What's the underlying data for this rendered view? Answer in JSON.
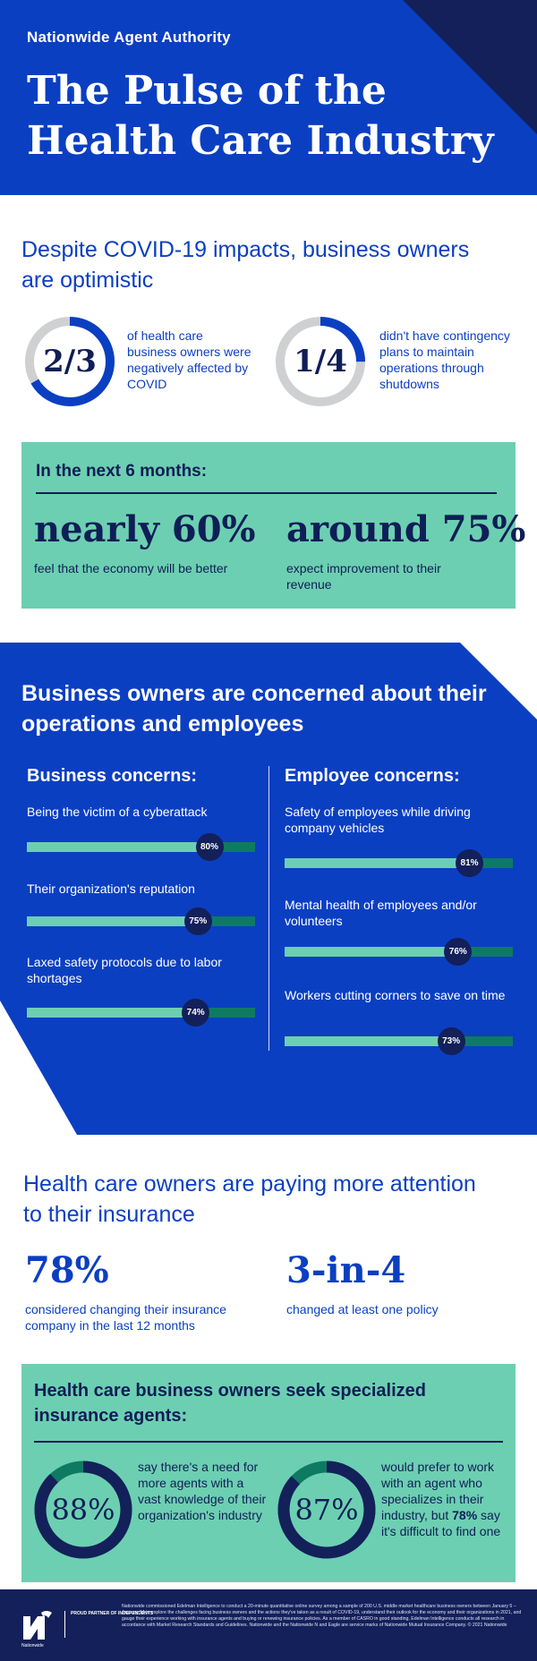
{
  "header": {
    "brand": "Nationwide Agent Authority",
    "title": "The Pulse of the Health Care Industry"
  },
  "optimism": {
    "heading": "Despite COVID-19 impacts, business owners are optimistic",
    "stats": [
      {
        "value": "2/3",
        "fraction": 0.667,
        "text": "of health care business owners were negatively affected by COVID"
      },
      {
        "value": "1/4",
        "fraction": 0.25,
        "text": "didn't have contingency plans to maintain operations through shutdowns"
      }
    ],
    "next_months": {
      "title": "In the next 6 months:",
      "items": [
        {
          "value": "nearly 60%",
          "text": "feel that the economy will be better"
        },
        {
          "value": "around 75%",
          "text": "expect improvement to their revenue"
        }
      ]
    }
  },
  "concerns": {
    "heading": "Business owners are concerned about their operations and employees",
    "business": {
      "title": "Business concerns:",
      "items": [
        {
          "label": "Being the victim of a cyberattack",
          "percent": 80,
          "badge": "80%"
        },
        {
          "label": "Their organization's reputation",
          "percent": 75,
          "badge": "75%"
        },
        {
          "label": "Laxed safety protocols due to labor shortages",
          "percent": 74,
          "badge": "74%"
        }
      ]
    },
    "employee": {
      "title": "Employee concerns:",
      "items": [
        {
          "label": "Safety of employees while driving company vehicles",
          "percent": 81,
          "badge": "81%"
        },
        {
          "label": "Mental health of employees and/or volunteers",
          "percent": 76,
          "badge": "76%"
        },
        {
          "label": "Workers cutting corners to save on time",
          "percent": 73,
          "badge": "73%"
        }
      ]
    }
  },
  "insurance": {
    "heading": "Health care owners are paying more attention to their insurance",
    "stats": [
      {
        "value": "78%",
        "text": "considered changing their insurance company in the last 12 months"
      },
      {
        "value": "3-in-4",
        "text": "changed at least one policy"
      }
    ]
  },
  "agents": {
    "title": "Health care business owners seek specialized insurance agents:",
    "items": [
      {
        "value": "88%",
        "fraction": 0.88,
        "text": "say there's a need for more agents with a vast knowledge of their organization's industry"
      },
      {
        "value": "87%",
        "fraction": 0.87,
        "text_before": "would prefer to work with an agent who specializes in their industry, but ",
        "text_bold": "78%",
        "text_after": " say it's difficult to find one"
      }
    ]
  },
  "footer": {
    "logo_text": "Nationwide",
    "partner": "PROUD PARTNER OF INDEPENDENTS",
    "disclaimer": "Nationwide commissioned Edelman Intelligence to conduct a 20-minute quantitative online survey among a sample of 200 U.S. middle market healthcare business owners between January 5 – January 14 to explore the challenges facing business owners and the actions they've taken as a result of COVID-19, understand their outlook for the economy and their organizations in 2021, and gauge their experience working with insurance agents and buying or renewing insurance policies. As a member of CASRO in good standing, Edelman Intelligence conducts all research in accordance with Market Research Standards and Guidelines. Nationwide and the Nationwide N and Eagle are service marks of Nationwide Mutual Insurance Company. © 2021 Nationwide"
  },
  "colors": {
    "royal_blue": "#0b3fc2",
    "navy": "#13205a",
    "mint": "#6dcfb1",
    "dark_green": "#0f7a62",
    "ring_gray": "#cfd0d2"
  }
}
